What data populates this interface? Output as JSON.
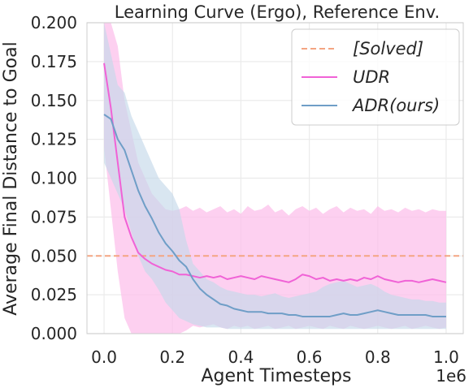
{
  "chart_data": {
    "type": "line",
    "title": "Learning Curve (Ergo), Reference Env.",
    "xlabel": "Agent Timesteps",
    "ylabel": "Average Final Distance to Goal",
    "x_offset_label": "1e6",
    "xlim": [
      -0.05,
      1.05
    ],
    "ylim": [
      0,
      0.2
    ],
    "xticks": [
      0.0,
      0.2,
      0.4,
      0.6,
      0.8,
      1.0
    ],
    "xtick_labels": [
      "0.0",
      "0.2",
      "0.4",
      "0.6",
      "0.8",
      "1.0"
    ],
    "yticks": [
      0.0,
      0.025,
      0.05,
      0.075,
      0.1,
      0.125,
      0.15,
      0.175,
      0.2
    ],
    "ytick_labels": [
      "0.000",
      "0.025",
      "0.050",
      "0.075",
      "0.100",
      "0.125",
      "0.150",
      "0.175",
      "0.200"
    ],
    "grid": true,
    "legend_position": "top-right",
    "colors": {
      "solved": "#f4a582",
      "udr": "#f062d6",
      "udr_band": "#fcc0eb",
      "adr": "#6f9ec7",
      "adr_band": "#c5d9ea"
    },
    "reference_line": {
      "name": "[Solved]",
      "y": 0.05
    },
    "series": [
      {
        "name": "UDR",
        "x": [
          0.0,
          0.02,
          0.04,
          0.06,
          0.08,
          0.1,
          0.12,
          0.14,
          0.16,
          0.18,
          0.2,
          0.22,
          0.24,
          0.26,
          0.28,
          0.3,
          0.32,
          0.34,
          0.36,
          0.38,
          0.4,
          0.42,
          0.44,
          0.46,
          0.48,
          0.5,
          0.52,
          0.54,
          0.56,
          0.58,
          0.6,
          0.62,
          0.64,
          0.66,
          0.68,
          0.7,
          0.72,
          0.74,
          0.76,
          0.78,
          0.8,
          0.82,
          0.84,
          0.86,
          0.88,
          0.9,
          0.92,
          0.94,
          0.96,
          0.98,
          1.0
        ],
        "y": [
          0.174,
          0.145,
          0.11,
          0.075,
          0.062,
          0.052,
          0.048,
          0.045,
          0.043,
          0.041,
          0.04,
          0.038,
          0.038,
          0.037,
          0.036,
          0.037,
          0.036,
          0.037,
          0.035,
          0.036,
          0.037,
          0.036,
          0.035,
          0.037,
          0.036,
          0.035,
          0.034,
          0.033,
          0.035,
          0.038,
          0.037,
          0.035,
          0.036,
          0.034,
          0.035,
          0.034,
          0.035,
          0.034,
          0.036,
          0.035,
          0.037,
          0.035,
          0.034,
          0.033,
          0.034,
          0.034,
          0.033,
          0.034,
          0.035,
          0.034,
          0.033
        ],
        "lower": [
          0.12,
          0.08,
          0.04,
          0.01,
          0.0,
          0.0,
          0.0,
          0.0,
          0.0,
          0.0,
          0.0,
          0.0,
          0.002,
          0.005,
          0.004,
          0.005,
          0.006,
          0.004,
          0.003,
          0.005,
          0.004,
          0.005,
          0.003,
          0.004,
          0.005,
          0.003,
          0.004,
          0.005,
          0.003,
          0.004,
          0.005,
          0.004,
          0.003,
          0.005,
          0.004,
          0.003,
          0.005,
          0.004,
          0.003,
          0.004,
          0.005,
          0.004,
          0.003,
          0.004,
          0.005,
          0.003,
          0.004,
          0.005,
          0.004,
          0.003,
          0.004
        ],
        "upper": [
          0.2,
          0.2,
          0.185,
          0.15,
          0.13,
          0.11,
          0.1,
          0.09,
          0.085,
          0.08,
          0.079,
          0.08,
          0.082,
          0.079,
          0.081,
          0.078,
          0.08,
          0.082,
          0.078,
          0.08,
          0.077,
          0.082,
          0.079,
          0.08,
          0.083,
          0.078,
          0.08,
          0.076,
          0.08,
          0.082,
          0.079,
          0.081,
          0.077,
          0.08,
          0.082,
          0.078,
          0.081,
          0.079,
          0.08,
          0.077,
          0.082,
          0.079,
          0.08,
          0.078,
          0.081,
          0.079,
          0.08,
          0.078,
          0.08,
          0.079,
          0.079
        ]
      },
      {
        "name": "ADR(ours)",
        "x": [
          0.0,
          0.02,
          0.04,
          0.06,
          0.08,
          0.1,
          0.12,
          0.14,
          0.16,
          0.18,
          0.2,
          0.22,
          0.24,
          0.26,
          0.28,
          0.3,
          0.32,
          0.34,
          0.36,
          0.38,
          0.4,
          0.42,
          0.44,
          0.46,
          0.48,
          0.5,
          0.52,
          0.54,
          0.56,
          0.58,
          0.6,
          0.62,
          0.64,
          0.66,
          0.68,
          0.7,
          0.72,
          0.74,
          0.76,
          0.78,
          0.8,
          0.82,
          0.84,
          0.86,
          0.88,
          0.9,
          0.92,
          0.94,
          0.96,
          0.98,
          1.0
        ],
        "y": [
          0.141,
          0.138,
          0.125,
          0.118,
          0.105,
          0.092,
          0.082,
          0.074,
          0.065,
          0.058,
          0.053,
          0.047,
          0.043,
          0.035,
          0.029,
          0.025,
          0.022,
          0.019,
          0.018,
          0.016,
          0.015,
          0.014,
          0.014,
          0.014,
          0.013,
          0.013,
          0.013,
          0.012,
          0.012,
          0.011,
          0.011,
          0.011,
          0.011,
          0.011,
          0.012,
          0.013,
          0.012,
          0.012,
          0.013,
          0.014,
          0.015,
          0.014,
          0.013,
          0.012,
          0.012,
          0.012,
          0.012,
          0.012,
          0.011,
          0.011,
          0.011
        ],
        "lower": [
          0.11,
          0.1,
          0.09,
          0.08,
          0.065,
          0.05,
          0.04,
          0.035,
          0.028,
          0.02,
          0.015,
          0.01,
          0.008,
          0.006,
          0.005,
          0.004,
          0.004,
          0.004,
          0.003,
          0.003,
          0.003,
          0.003,
          0.003,
          0.003,
          0.003,
          0.003,
          0.003,
          0.003,
          0.003,
          0.003,
          0.003,
          0.003,
          0.003,
          0.003,
          0.003,
          0.003,
          0.003,
          0.003,
          0.003,
          0.003,
          0.003,
          0.003,
          0.003,
          0.003,
          0.003,
          0.003,
          0.003,
          0.003,
          0.003,
          0.003,
          0.003
        ],
        "upper": [
          0.2,
          0.18,
          0.16,
          0.155,
          0.14,
          0.13,
          0.12,
          0.11,
          0.1,
          0.095,
          0.09,
          0.08,
          0.06,
          0.045,
          0.04,
          0.035,
          0.033,
          0.03,
          0.028,
          0.027,
          0.026,
          0.025,
          0.025,
          0.024,
          0.025,
          0.026,
          0.024,
          0.023,
          0.024,
          0.025,
          0.026,
          0.027,
          0.03,
          0.032,
          0.033,
          0.034,
          0.032,
          0.03,
          0.031,
          0.032,
          0.03,
          0.027,
          0.025,
          0.024,
          0.023,
          0.022,
          0.022,
          0.021,
          0.021,
          0.02,
          0.02
        ]
      }
    ]
  }
}
